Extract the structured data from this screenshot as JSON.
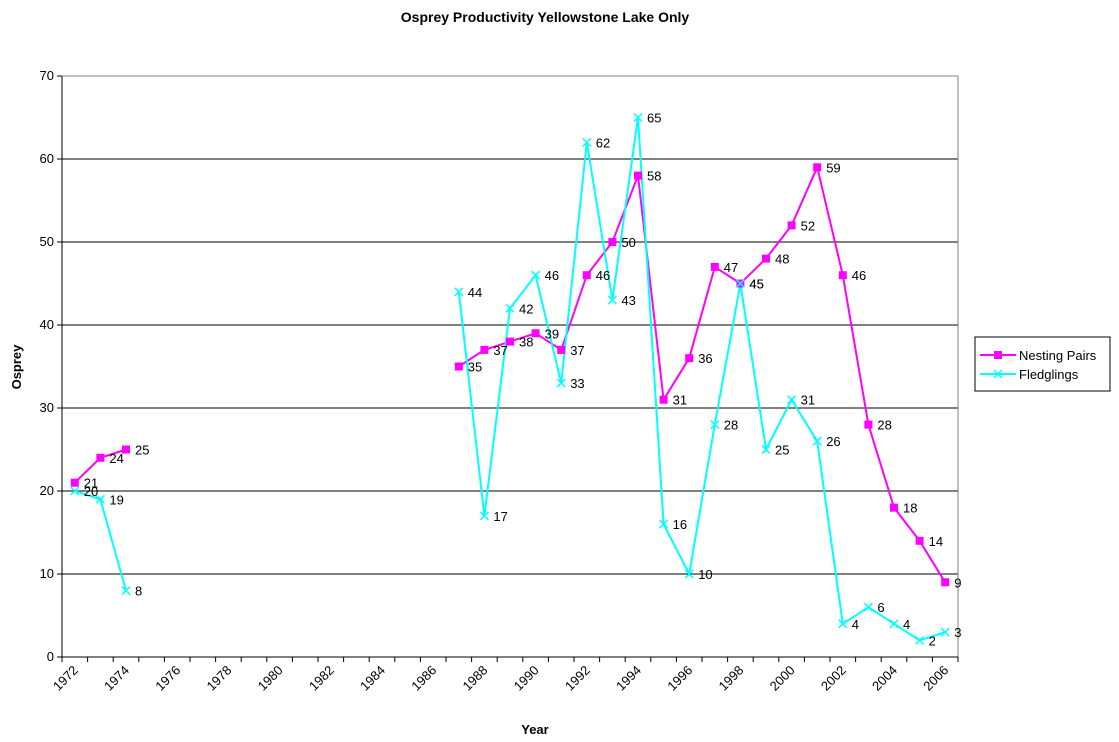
{
  "chart_data": {
    "type": "line",
    "title": "Osprey Productivity    Yellowstone Lake Only",
    "x_label": "Year",
    "y_label": "Osprey",
    "categories": [
      "1972",
      null,
      "1974",
      null,
      "1976",
      null,
      "1978",
      null,
      "1980",
      null,
      "1982",
      null,
      "1984",
      null,
      "1986",
      null,
      "1988",
      null,
      "1990",
      null,
      "1992",
      null,
      "1994",
      null,
      "1996",
      null,
      "1998",
      null,
      "2000",
      null,
      "2002",
      null,
      "2004",
      null,
      "2006"
    ],
    "series": [
      {
        "name": "Nesting Pairs",
        "color": "#ff00ff",
        "marker": "square",
        "values": [
          21,
          24,
          25,
          null,
          null,
          null,
          null,
          null,
          null,
          null,
          null,
          null,
          null,
          null,
          null,
          35,
          37,
          38,
          39,
          37,
          46,
          50,
          58,
          31,
          36,
          47,
          45,
          48,
          52,
          59,
          46,
          28,
          18,
          14,
          9
        ]
      },
      {
        "name": "Fledglings",
        "color": "#00ffff",
        "marker": "x",
        "values": [
          20,
          19,
          8,
          null,
          null,
          null,
          null,
          null,
          null,
          null,
          null,
          null,
          null,
          null,
          null,
          44,
          17,
          42,
          46,
          33,
          62,
          43,
          65,
          16,
          10,
          28,
          45,
          25,
          31,
          26,
          4,
          6,
          4,
          2,
          3
        ]
      }
    ],
    "ylim": [
      0,
      70
    ],
    "yticks": [
      0,
      10,
      20,
      30,
      40,
      50,
      60,
      70
    ],
    "grid": true,
    "legend": "right"
  }
}
